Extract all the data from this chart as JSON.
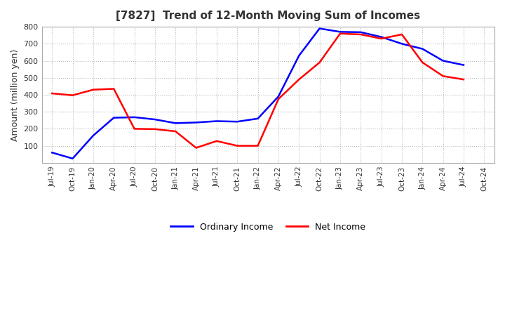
{
  "title": "[7827]  Trend of 12-Month Moving Sum of Incomes",
  "ylabel": "Amount (million yen)",
  "x_labels": [
    "Jul-19",
    "Oct-19",
    "Jan-20",
    "Apr-20",
    "Jul-20",
    "Oct-20",
    "Jan-21",
    "Apr-21",
    "Jul-21",
    "Oct-21",
    "Jan-22",
    "Apr-22",
    "Jul-22",
    "Oct-22",
    "Jan-23",
    "Apr-23",
    "Jul-23",
    "Oct-23",
    "Jan-24",
    "Apr-24",
    "Jul-24",
    "Oct-24"
  ],
  "ordinary_income": [
    60,
    25,
    160,
    265,
    268,
    255,
    233,
    237,
    245,
    242,
    260,
    390,
    630,
    790,
    770,
    768,
    740,
    700,
    670,
    600,
    575,
    null
  ],
  "net_income": [
    408,
    397,
    430,
    435,
    200,
    198,
    185,
    88,
    128,
    100,
    100,
    375,
    490,
    590,
    760,
    755,
    730,
    755,
    590,
    510,
    490,
    null
  ],
  "ylim": [
    0,
    800
  ],
  "yticks": [
    100,
    200,
    300,
    400,
    500,
    600,
    700,
    800
  ],
  "ordinary_color": "#0000FF",
  "net_color": "#FF0000",
  "line_width": 1.8,
  "background_color": "#FFFFFF",
  "grid_color": "#BBBBBB",
  "title_color": "#333333",
  "legend_ordinary": "Ordinary Income",
  "legend_net": "Net Income"
}
